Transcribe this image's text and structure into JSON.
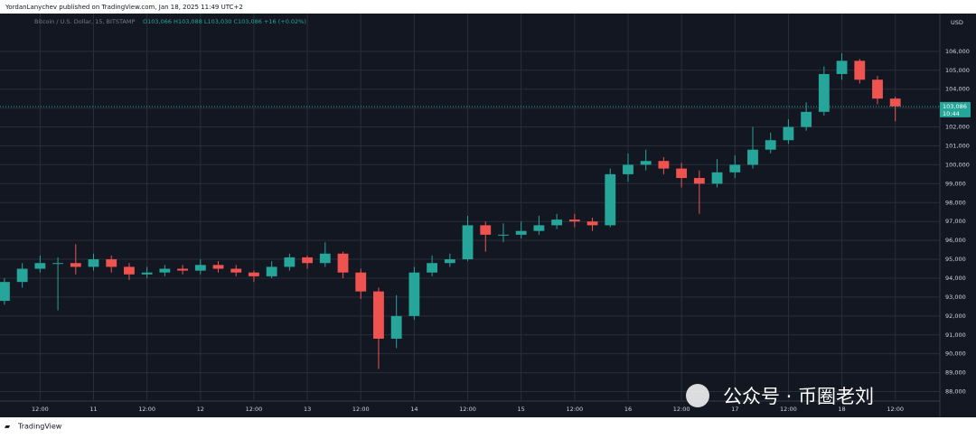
{
  "header": "YordanLanychev published on TradingView.com, Jan 18, 2025 11:49 UTC+2",
  "footer": "TradingView",
  "watermark": "公众号 · 币圈老刘",
  "chart_data": {
    "type": "candlestick",
    "symbol": "Bitcoin / U.S. Dollar, 15, BITSTAMP",
    "ohlc_legend": "O103,066 H103,088 L103,030 C103,086 +16 (+0.02%)",
    "currency": "USD",
    "price_label": "103,086",
    "countdown": "10:44",
    "last_price": 103086,
    "up_color": "#26a69a",
    "down_color": "#ef5350",
    "grid": true,
    "x": [
      0,
      1,
      2,
      3,
      4,
      5,
      6,
      7,
      8,
      9,
      10,
      11,
      12,
      13,
      14,
      15,
      16,
      17,
      18,
      19,
      20,
      21,
      22,
      23,
      24,
      25,
      26,
      27,
      28,
      29,
      30,
      31,
      32,
      33,
      34,
      35,
      36,
      37,
      38,
      39,
      40,
      41,
      42,
      43,
      44,
      45,
      46,
      47,
      48,
      49,
      50
    ],
    "open": [
      92800,
      93800,
      94500,
      94800,
      94800,
      94600,
      95000,
      94600,
      94200,
      94300,
      94500,
      94400,
      94700,
      94500,
      94300,
      94100,
      94600,
      95100,
      94800,
      95300,
      94300,
      93300,
      90800,
      92000,
      94300,
      94800,
      95000,
      96800,
      96300,
      96300,
      96500,
      96800,
      97100,
      97000,
      96800,
      99500,
      100000,
      100200,
      99800,
      99300,
      99000,
      99600,
      100000,
      100800,
      101300,
      102000,
      102800,
      104800,
      105500,
      104500,
      103500
    ],
    "high": [
      94000,
      94800,
      95200,
      95100,
      95800,
      95300,
      95200,
      94800,
      94600,
      94700,
      94700,
      95000,
      94900,
      94700,
      94400,
      94900,
      95300,
      95200,
      95900,
      95400,
      94500,
      93500,
      93100,
      94600,
      95200,
      95300,
      97300,
      97000,
      96900,
      97000,
      97300,
      97400,
      97400,
      97200,
      99800,
      100600,
      100800,
      100400,
      100100,
      99700,
      100300,
      100500,
      102000,
      101700,
      102400,
      103300,
      105200,
      105900,
      105600,
      104700,
      103600
    ],
    "low": [
      92600,
      93500,
      94300,
      92300,
      94200,
      94400,
      94300,
      93900,
      94000,
      94100,
      94200,
      94200,
      94300,
      94100,
      93800,
      94000,
      94400,
      94500,
      94600,
      94000,
      92900,
      89200,
      90300,
      91800,
      94100,
      94600,
      94900,
      95400,
      95900,
      96100,
      96300,
      96600,
      96700,
      96500,
      96700,
      99100,
      99700,
      99500,
      98800,
      97400,
      98800,
      99300,
      99800,
      100600,
      101100,
      101800,
      102600,
      104500,
      104300,
      103200,
      102300
    ],
    "close": [
      93800,
      94500,
      94800,
      94800,
      94600,
      95000,
      94600,
      94200,
      94300,
      94500,
      94400,
      94700,
      94500,
      94300,
      94100,
      94600,
      95100,
      94800,
      95300,
      94300,
      93300,
      90800,
      92000,
      94300,
      94800,
      95000,
      96800,
      96300,
      96300,
      96500,
      96800,
      97100,
      97000,
      96800,
      99500,
      100000,
      100200,
      99800,
      99300,
      99000,
      99600,
      100000,
      100800,
      101300,
      102000,
      102800,
      104800,
      105500,
      104500,
      103500,
      103086
    ],
    "xlim": [
      -0.25,
      52.5
    ],
    "xticks": [
      {
        "value": 2,
        "label": "12:00"
      },
      {
        "value": 5,
        "label": "11"
      },
      {
        "value": 8,
        "label": "12:00"
      },
      {
        "value": 11,
        "label": "12"
      },
      {
        "value": 14,
        "label": "12:00"
      },
      {
        "value": 17,
        "label": "13"
      },
      {
        "value": 20,
        "label": "12:00"
      },
      {
        "value": 23,
        "label": "14"
      },
      {
        "value": 26,
        "label": "12:00"
      },
      {
        "value": 29,
        "label": "15"
      },
      {
        "value": 32,
        "label": "12:00"
      },
      {
        "value": 35,
        "label": "16"
      },
      {
        "value": 38,
        "label": "12:00"
      },
      {
        "value": 41,
        "label": "17"
      },
      {
        "value": 44,
        "label": "12:00"
      },
      {
        "value": 47,
        "label": "18"
      },
      {
        "value": 50,
        "label": "12:00"
      }
    ],
    "ylim": [
      87500,
      108000
    ],
    "yticks": [
      {
        "value": 88000,
        "label": "88,000"
      },
      {
        "value": 89000,
        "label": "89,000"
      },
      {
        "value": 90000,
        "label": "90,000"
      },
      {
        "value": 91000,
        "label": "91,000"
      },
      {
        "value": 92000,
        "label": "92,000"
      },
      {
        "value": 93000,
        "label": "93,000"
      },
      {
        "value": 94000,
        "label": "94,000"
      },
      {
        "value": 95000,
        "label": "95,000"
      },
      {
        "value": 96000,
        "label": "96,000"
      },
      {
        "value": 97000,
        "label": "97,000"
      },
      {
        "value": 98000,
        "label": "98,000"
      },
      {
        "value": 99000,
        "label": "99,000"
      },
      {
        "value": 100000,
        "label": "100,000"
      },
      {
        "value": 101000,
        "label": "101,000"
      },
      {
        "value": 102000,
        "label": "102,000"
      },
      {
        "value": 103000,
        "label": "103,000"
      },
      {
        "value": 104000,
        "label": "104,000"
      },
      {
        "value": 105000,
        "label": "105,000"
      },
      {
        "value": 106000,
        "label": "106,000"
      }
    ]
  }
}
